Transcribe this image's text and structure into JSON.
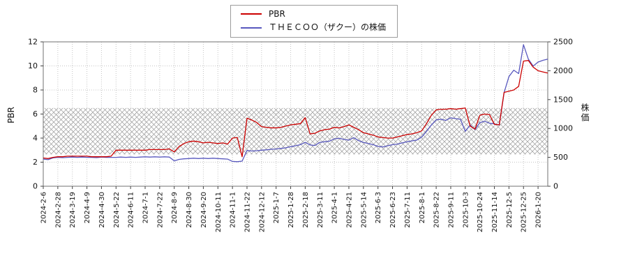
{
  "legend": {
    "items": [
      {
        "label": "PBR",
        "color": "#cc0000"
      },
      {
        "label": "ＴＨＥＣＯＯ（ザクー）の株価",
        "color": "#5858be"
      }
    ]
  },
  "chart_data": {
    "type": "line",
    "title": "",
    "grid": true,
    "x_tick_labels": [
      "2024-2-6",
      "2024-2-28",
      "2024-3-19",
      "2024-4-9",
      "2024-4-30",
      "2024-5-22",
      "2024-6-11",
      "2024-7-1",
      "2024-7-22",
      "2024-8-9",
      "2024-8-30",
      "2024-9-20",
      "2024-10-11",
      "2024-11-1",
      "2024-11-22",
      "2024-12-12",
      "2025-1-7",
      "2025-1-28",
      "2025-2-18",
      "2025-3-11",
      "2025-4-1",
      "2025-4-21",
      "2025-5-14",
      "2025-6-3",
      "2025-6-23",
      "2025-7-11",
      "2025-8-1",
      "2025-8-22",
      "2025-9-11",
      "2025-10-3",
      "2025-10-24",
      "2025-11-14",
      "2025-12-5",
      "2025-12-25",
      "2026-1-20"
    ],
    "points_per_tick": 3,
    "left_axis": {
      "label": "PBR",
      "min": 0,
      "max": 12,
      "ticks": [
        0,
        2,
        4,
        6,
        8,
        10,
        12
      ]
    },
    "right_axis": {
      "label": "株価",
      "min": 0,
      "max": 2500,
      "ticks": [
        0,
        500,
        1000,
        1500,
        2000,
        2500
      ]
    },
    "band": {
      "axis": "left",
      "from": 2.65,
      "to": 6.5,
      "style": "crosshatch",
      "color": "#9b9b9b"
    },
    "series": [
      {
        "name": "PBR",
        "axis": "left",
        "color": "#cc0000",
        "values": [
          2.35,
          2.3,
          2.4,
          2.45,
          2.45,
          2.5,
          2.5,
          2.5,
          2.5,
          2.5,
          2.45,
          2.45,
          2.45,
          2.45,
          2.5,
          3.0,
          3.0,
          3.0,
          3.0,
          3.0,
          3.0,
          3.0,
          3.05,
          3.05,
          3.05,
          3.05,
          3.1,
          2.85,
          3.3,
          3.55,
          3.7,
          3.75,
          3.7,
          3.6,
          3.65,
          3.6,
          3.55,
          3.6,
          3.5,
          4.0,
          4.05,
          2.45,
          5.65,
          5.5,
          5.3,
          4.95,
          4.9,
          4.85,
          4.85,
          4.9,
          5.0,
          5.1,
          5.15,
          5.2,
          5.7,
          4.35,
          4.4,
          4.6,
          4.7,
          4.75,
          4.9,
          4.85,
          4.95,
          5.1,
          4.9,
          4.7,
          4.45,
          4.35,
          4.25,
          4.1,
          4.05,
          4.0,
          4.0,
          4.1,
          4.2,
          4.3,
          4.35,
          4.45,
          4.6,
          5.2,
          5.9,
          6.35,
          6.4,
          6.4,
          6.45,
          6.4,
          6.45,
          6.5,
          5.0,
          4.75,
          5.9,
          6.0,
          5.95,
          5.15,
          5.1,
          7.8,
          7.9,
          8.0,
          8.3,
          10.4,
          10.45,
          9.9,
          9.6,
          9.5,
          9.4
        ]
      },
      {
        "name": "ＴＨＥＣＯＯ（ザクー）の株価",
        "axis": "right",
        "color": "#5858be",
        "values": [
          470,
          460,
          490,
          500,
          495,
          500,
          505,
          500,
          505,
          500,
          500,
          495,
          505,
          500,
          500,
          500,
          505,
          500,
          505,
          500,
          505,
          510,
          505,
          510,
          505,
          510,
          505,
          440,
          465,
          475,
          480,
          485,
          480,
          485,
          480,
          485,
          480,
          475,
          470,
          430,
          425,
          435,
          620,
          610,
          615,
          625,
          630,
          640,
          645,
          655,
          665,
          685,
          700,
          720,
          760,
          715,
          705,
          760,
          770,
          780,
          820,
          830,
          810,
          800,
          840,
          790,
          760,
          740,
          720,
          690,
          680,
          700,
          720,
          730,
          750,
          770,
          785,
          800,
          850,
          950,
          1060,
          1150,
          1160,
          1140,
          1185,
          1170,
          1160,
          950,
          1060,
          980,
          1100,
          1125,
          1090,
          1080,
          1060,
          1620,
          1900,
          2010,
          1950,
          2450,
          2200,
          2080,
          2150,
          2180,
          2200
        ]
      }
    ]
  }
}
